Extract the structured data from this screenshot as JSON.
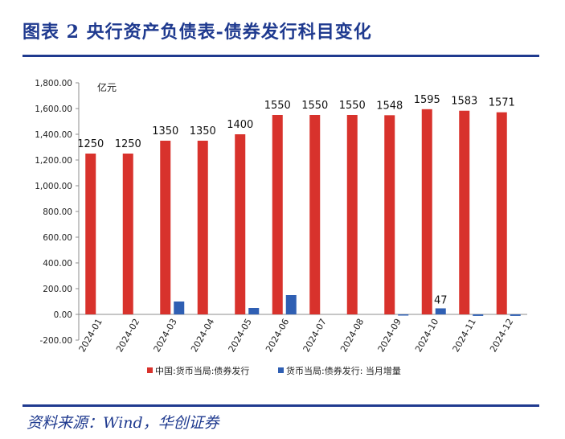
{
  "header": {
    "figure_title": "图表 2   央行资产负债表-债券发行科目变化"
  },
  "footer": {
    "source": "资料来源：Wind，华创证券"
  },
  "colors": {
    "title_blue": "#1f3a8f",
    "series_red": "#d8322c",
    "series_blue": "#2f5fb3"
  },
  "chart_data": {
    "type": "bar",
    "title": "",
    "unit_label": "亿元",
    "xlabel": "",
    "ylabel": "亿元",
    "ylim": [
      -200,
      1800
    ],
    "yticks": [
      -200,
      0,
      200,
      400,
      600,
      800,
      1000,
      1200,
      1400,
      1600,
      1800
    ],
    "ytick_labels": [
      "-200.00",
      "0.00",
      "200.00",
      "400.00",
      "600.00",
      "800.00",
      "1,000.00",
      "1,200.00",
      "1,400.00",
      "1,600.00",
      "1,800.00"
    ],
    "grid": false,
    "legend_position": "bottom",
    "categories": [
      "2024-01",
      "2024-02",
      "2024-03",
      "2024-04",
      "2024-05",
      "2024-06",
      "2024-07",
      "2024-08",
      "2024-09",
      "2024-10",
      "2024-11",
      "2024-12"
    ],
    "series": [
      {
        "name": "中国:货币当局:债券发行",
        "color": "#d8322c",
        "values": [
          1250,
          1250,
          1350,
          1350,
          1400,
          1550,
          1550,
          1550,
          1548,
          1595,
          1583,
          1571
        ],
        "labels": [
          "1250",
          "1250",
          "1350",
          "1350",
          "1400",
          "1550",
          "1550",
          "1550",
          "1548",
          "1595",
          "1583",
          "1571"
        ]
      },
      {
        "name": "货币当局:债券发行: 当月增量",
        "color": "#2f5fb3",
        "values": [
          0,
          0,
          100,
          0,
          50,
          150,
          0,
          0,
          -2,
          47,
          -12,
          -12
        ],
        "labels": [
          "",
          "",
          "",
          "",
          "",
          "",
          "",
          "",
          "",
          "47",
          "",
          ""
        ]
      }
    ]
  }
}
